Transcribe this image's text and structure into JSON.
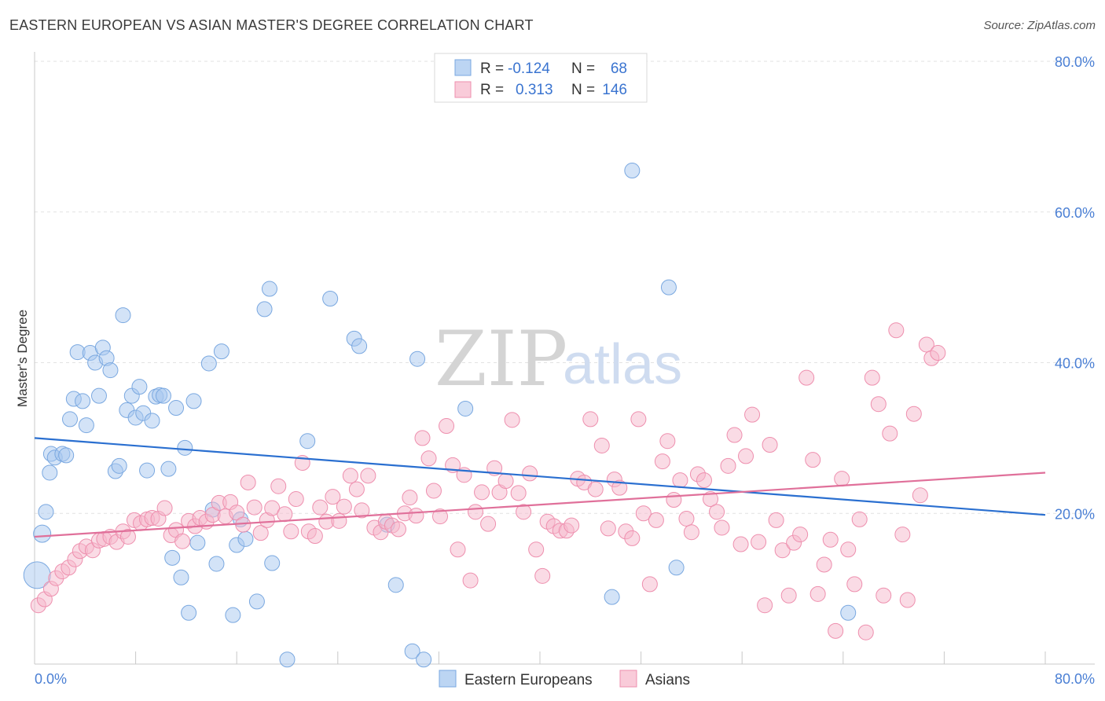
{
  "chart_data": {
    "type": "scatter",
    "title": "EASTERN EUROPEAN VS ASIAN MASTER'S DEGREE CORRELATION CHART",
    "source": "Source: ZipAtlas.com",
    "ylabel": "Master's Degree",
    "xlim": [
      0,
      80
    ],
    "ylim": [
      0,
      80
    ],
    "x_tick_labels": [
      "0.0%",
      "80.0%"
    ],
    "y_tick_values": [
      20,
      40,
      60,
      80
    ],
    "y_tick_labels": [
      "20.0%",
      "40.0%",
      "60.0%",
      "80.0%"
    ],
    "watermark": {
      "zip": "ZIP",
      "atlas": "atlas"
    },
    "legend_stats": [
      {
        "r_label": "R =",
        "r_value": "-0.124",
        "n_label": "N =",
        "n_value": "68",
        "color": "#a8c8f0"
      },
      {
        "r_label": "R =",
        "r_value": "0.313",
        "n_label": "N =",
        "n_value": "146",
        "color": "#f5b8cb"
      }
    ],
    "series": [
      {
        "name": "Eastern Europeans",
        "color": "#a8c8f0",
        "stroke": "#7aa8e0",
        "trend_color": "#2a6fd0",
        "trend": [
          [
            0,
            30.0
          ],
          [
            80,
            19.8
          ]
        ],
        "points": [
          [
            0.2,
            11.8
          ],
          [
            0.6,
            17.3
          ],
          [
            0.9,
            20.2
          ],
          [
            1.2,
            25.4
          ],
          [
            1.3,
            27.9
          ],
          [
            1.6,
            27.4
          ],
          [
            2.2,
            27.9
          ],
          [
            2.5,
            27.7
          ],
          [
            2.8,
            32.5
          ],
          [
            3.1,
            35.2
          ],
          [
            3.4,
            41.4
          ],
          [
            3.8,
            34.9
          ],
          [
            4.1,
            31.7
          ],
          [
            4.4,
            41.3
          ],
          [
            4.8,
            40.0
          ],
          [
            5.1,
            35.6
          ],
          [
            5.4,
            42.0
          ],
          [
            5.7,
            40.6
          ],
          [
            6.0,
            39.0
          ],
          [
            6.4,
            25.6
          ],
          [
            6.7,
            26.3
          ],
          [
            7.0,
            46.3
          ],
          [
            7.3,
            33.7
          ],
          [
            7.7,
            35.6
          ],
          [
            8.0,
            32.7
          ],
          [
            8.3,
            36.8
          ],
          [
            8.6,
            33.3
          ],
          [
            8.9,
            25.7
          ],
          [
            9.3,
            32.3
          ],
          [
            9.6,
            35.5
          ],
          [
            9.9,
            35.7
          ],
          [
            10.2,
            35.6
          ],
          [
            10.6,
            25.9
          ],
          [
            10.9,
            14.1
          ],
          [
            11.2,
            34.0
          ],
          [
            11.6,
            11.5
          ],
          [
            11.9,
            28.7
          ],
          [
            12.2,
            6.8
          ],
          [
            12.6,
            34.9
          ],
          [
            12.9,
            16.1
          ],
          [
            13.8,
            39.9
          ],
          [
            14.1,
            20.5
          ],
          [
            14.4,
            13.3
          ],
          [
            14.8,
            41.5
          ],
          [
            15.7,
            6.5
          ],
          [
            16.0,
            15.8
          ],
          [
            16.3,
            19.2
          ],
          [
            16.7,
            16.6
          ],
          [
            17.6,
            8.3
          ],
          [
            18.2,
            47.1
          ],
          [
            18.6,
            49.8
          ],
          [
            18.8,
            13.4
          ],
          [
            20.0,
            0.6
          ],
          [
            21.6,
            29.6
          ],
          [
            23.4,
            48.5
          ],
          [
            25.3,
            43.2
          ],
          [
            25.7,
            42.2
          ],
          [
            27.9,
            18.5
          ],
          [
            28.6,
            10.5
          ],
          [
            29.9,
            1.7
          ],
          [
            30.3,
            40.5
          ],
          [
            30.8,
            0.6
          ],
          [
            34.1,
            33.9
          ],
          [
            45.7,
            8.9
          ],
          [
            47.3,
            65.5
          ],
          [
            50.2,
            50.0
          ],
          [
            50.8,
            12.8
          ],
          [
            64.4,
            6.8
          ]
        ]
      },
      {
        "name": "Asians",
        "color": "#f5b8cb",
        "stroke": "#ee8fae",
        "trend_color": "#e0709a",
        "trend": [
          [
            0,
            16.9
          ],
          [
            80,
            25.4
          ]
        ],
        "points": [
          [
            0.3,
            7.8
          ],
          [
            0.8,
            8.6
          ],
          [
            1.3,
            10.0
          ],
          [
            1.7,
            11.4
          ],
          [
            2.2,
            12.3
          ],
          [
            2.7,
            12.8
          ],
          [
            3.2,
            13.9
          ],
          [
            3.6,
            15.0
          ],
          [
            4.1,
            15.6
          ],
          [
            4.6,
            15.1
          ],
          [
            5.1,
            16.4
          ],
          [
            5.5,
            16.6
          ],
          [
            6.0,
            16.9
          ],
          [
            6.5,
            16.2
          ],
          [
            7.0,
            17.6
          ],
          [
            7.4,
            16.9
          ],
          [
            7.9,
            19.1
          ],
          [
            8.4,
            18.7
          ],
          [
            8.9,
            19.2
          ],
          [
            9.3,
            19.4
          ],
          [
            9.8,
            19.3
          ],
          [
            10.3,
            20.7
          ],
          [
            10.8,
            17.1
          ],
          [
            11.2,
            17.8
          ],
          [
            11.7,
            16.3
          ],
          [
            12.2,
            19.0
          ],
          [
            12.7,
            18.3
          ],
          [
            13.1,
            19.4
          ],
          [
            13.6,
            18.9
          ],
          [
            14.1,
            19.8
          ],
          [
            14.6,
            21.4
          ],
          [
            15.1,
            19.6
          ],
          [
            15.5,
            21.5
          ],
          [
            16.0,
            20.1
          ],
          [
            16.5,
            18.5
          ],
          [
            16.9,
            24.1
          ],
          [
            17.4,
            20.8
          ],
          [
            17.9,
            17.4
          ],
          [
            18.4,
            19.1
          ],
          [
            18.8,
            20.7
          ],
          [
            19.3,
            23.6
          ],
          [
            19.8,
            19.9
          ],
          [
            20.3,
            17.6
          ],
          [
            20.7,
            21.9
          ],
          [
            21.2,
            26.7
          ],
          [
            21.7,
            17.6
          ],
          [
            22.2,
            17.0
          ],
          [
            22.6,
            20.8
          ],
          [
            23.1,
            18.9
          ],
          [
            23.6,
            22.2
          ],
          [
            24.1,
            19.0
          ],
          [
            24.5,
            20.9
          ],
          [
            25.0,
            25.0
          ],
          [
            25.5,
            23.2
          ],
          [
            25.9,
            20.4
          ],
          [
            26.4,
            25.0
          ],
          [
            26.9,
            18.1
          ],
          [
            27.4,
            17.5
          ],
          [
            27.8,
            18.9
          ],
          [
            28.3,
            18.4
          ],
          [
            28.8,
            17.9
          ],
          [
            29.3,
            20.0
          ],
          [
            29.7,
            22.1
          ],
          [
            30.2,
            19.7
          ],
          [
            30.7,
            30.0
          ],
          [
            31.2,
            27.3
          ],
          [
            31.6,
            23.0
          ],
          [
            32.1,
            19.6
          ],
          [
            32.6,
            31.6
          ],
          [
            33.1,
            26.4
          ],
          [
            33.5,
            15.2
          ],
          [
            34.0,
            25.1
          ],
          [
            34.5,
            11.1
          ],
          [
            34.9,
            20.2
          ],
          [
            35.4,
            22.8
          ],
          [
            35.9,
            18.6
          ],
          [
            36.4,
            26.0
          ],
          [
            36.8,
            22.8
          ],
          [
            37.3,
            24.3
          ],
          [
            37.8,
            32.4
          ],
          [
            38.3,
            22.7
          ],
          [
            38.7,
            20.2
          ],
          [
            39.2,
            25.3
          ],
          [
            39.7,
            15.2
          ],
          [
            40.2,
            11.7
          ],
          [
            40.6,
            18.9
          ],
          [
            41.1,
            18.3
          ],
          [
            41.6,
            17.7
          ],
          [
            42.1,
            17.7
          ],
          [
            42.5,
            18.4
          ],
          [
            43.0,
            24.6
          ],
          [
            43.5,
            24.1
          ],
          [
            44.0,
            32.5
          ],
          [
            44.4,
            23.2
          ],
          [
            44.9,
            29.0
          ],
          [
            45.4,
            18.0
          ],
          [
            45.9,
            24.5
          ],
          [
            46.3,
            23.4
          ],
          [
            46.8,
            17.6
          ],
          [
            47.3,
            16.7
          ],
          [
            47.8,
            32.5
          ],
          [
            48.2,
            20.0
          ],
          [
            48.7,
            10.6
          ],
          [
            49.2,
            19.1
          ],
          [
            49.7,
            26.9
          ],
          [
            50.1,
            29.6
          ],
          [
            50.6,
            21.8
          ],
          [
            51.1,
            24.4
          ],
          [
            51.6,
            19.3
          ],
          [
            52.0,
            17.5
          ],
          [
            52.5,
            25.2
          ],
          [
            53.0,
            24.4
          ],
          [
            53.5,
            21.9
          ],
          [
            54.0,
            20.2
          ],
          [
            54.4,
            18.1
          ],
          [
            54.9,
            26.3
          ],
          [
            55.4,
            30.4
          ],
          [
            55.9,
            15.9
          ],
          [
            56.3,
            27.6
          ],
          [
            56.8,
            33.1
          ],
          [
            57.3,
            16.2
          ],
          [
            57.8,
            7.8
          ],
          [
            58.2,
            29.1
          ],
          [
            58.7,
            19.1
          ],
          [
            59.2,
            15.1
          ],
          [
            59.7,
            9.1
          ],
          [
            60.1,
            16.1
          ],
          [
            60.6,
            17.2
          ],
          [
            61.1,
            38.0
          ],
          [
            61.6,
            27.1
          ],
          [
            62.0,
            9.3
          ],
          [
            62.5,
            13.2
          ],
          [
            63.0,
            16.5
          ],
          [
            63.4,
            4.4
          ],
          [
            63.9,
            24.6
          ],
          [
            64.4,
            15.2
          ],
          [
            64.9,
            10.6
          ],
          [
            65.3,
            19.2
          ],
          [
            65.8,
            4.2
          ],
          [
            66.3,
            38.0
          ],
          [
            66.8,
            34.5
          ],
          [
            67.2,
            9.1
          ],
          [
            67.7,
            30.6
          ],
          [
            68.2,
            44.3
          ],
          [
            68.7,
            17.2
          ],
          [
            69.1,
            8.5
          ],
          [
            69.6,
            33.2
          ],
          [
            70.1,
            22.4
          ],
          [
            70.6,
            42.4
          ],
          [
            71.0,
            40.6
          ],
          [
            71.5,
            41.3
          ]
        ]
      }
    ]
  }
}
